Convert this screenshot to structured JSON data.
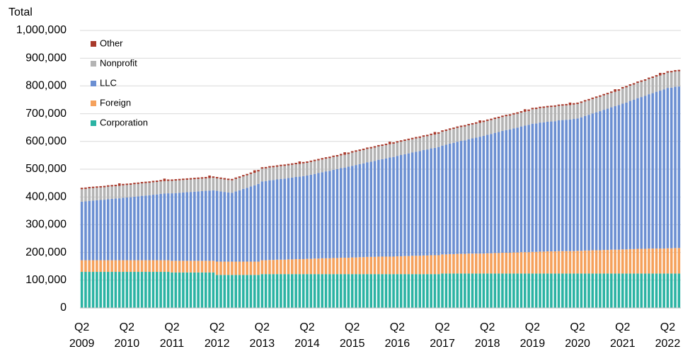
{
  "chart_data": {
    "type": "stacked_bar",
    "y_label": "Total",
    "categories": [
      [
        "Q2",
        "2009"
      ],
      null,
      null,
      null,
      null,
      null,
      null,
      null,
      null,
      null,
      null,
      null,
      [
        "Q2",
        "2010"
      ],
      null,
      null,
      null,
      null,
      null,
      null,
      null,
      null,
      null,
      null,
      null,
      [
        "Q2",
        "2011"
      ],
      null,
      null,
      null,
      null,
      null,
      null,
      null,
      null,
      null,
      null,
      null,
      [
        "Q2",
        "2012"
      ],
      null,
      null,
      null,
      null,
      null,
      null,
      null,
      null,
      null,
      null,
      null,
      [
        "Q2",
        "2013"
      ],
      null,
      null,
      null,
      null,
      null,
      null,
      null,
      null,
      null,
      null,
      null,
      [
        "Q2",
        "2014"
      ],
      null,
      null,
      null,
      null,
      null,
      null,
      null,
      null,
      null,
      null,
      null,
      [
        "Q2",
        "2015"
      ],
      null,
      null,
      null,
      null,
      null,
      null,
      null,
      null,
      null,
      null,
      null,
      [
        "Q2",
        "2016"
      ],
      null,
      null,
      null,
      null,
      null,
      null,
      null,
      null,
      null,
      null,
      null,
      [
        "Q2",
        "2017"
      ],
      null,
      null,
      null,
      null,
      null,
      null,
      null,
      null,
      null,
      null,
      null,
      [
        "Q2",
        "2018"
      ],
      null,
      null,
      null,
      null,
      null,
      null,
      null,
      null,
      null,
      null,
      null,
      [
        "Q2",
        "2019"
      ],
      null,
      null,
      null,
      null,
      null,
      null,
      null,
      null,
      null,
      null,
      null,
      [
        "Q2",
        "2020"
      ],
      null,
      null,
      null,
      null,
      null,
      null,
      null,
      null,
      null,
      null,
      null,
      [
        "Q2",
        "2021"
      ],
      null,
      null,
      null,
      null,
      null,
      null,
      null,
      null,
      null,
      null,
      null,
      [
        "Q2",
        "2022"
      ],
      null,
      null,
      null
    ],
    "series": [
      {
        "name": "Corporation",
        "color": "#2bb3a3",
        "values": [
          130000,
          130000,
          130000,
          130000,
          130000,
          130000,
          130000,
          130000,
          130000,
          130000,
          130000,
          130000,
          130000,
          130000,
          130000,
          130000,
          130000,
          130000,
          130000,
          130000,
          130000,
          130000,
          130000,
          130000,
          128000,
          128000,
          128000,
          128000,
          128000,
          128000,
          128000,
          128000,
          128000,
          128000,
          128000,
          128000,
          119000,
          119000,
          119000,
          119000,
          119000,
          119000,
          119000,
          119000,
          119000,
          119000,
          119000,
          119000,
          122000,
          122000,
          122000,
          122000,
          122000,
          122000,
          122000,
          122000,
          122000,
          122000,
          122000,
          122000,
          122000,
          122000,
          122000,
          122000,
          122000,
          122000,
          122000,
          122000,
          122000,
          122000,
          122000,
          122000,
          122000,
          122000,
          122000,
          122000,
          122000,
          122000,
          122000,
          122000,
          122000,
          122000,
          122000,
          122000,
          122000,
          122000,
          122000,
          122000,
          122000,
          122000,
          122000,
          122000,
          122000,
          122000,
          122000,
          122000,
          124000,
          124000,
          124000,
          124000,
          124000,
          124000,
          124000,
          124000,
          124000,
          124000,
          124000,
          124000,
          124000,
          124000,
          124000,
          124000,
          124000,
          124000,
          124000,
          124000,
          124000,
          124000,
          124000,
          124000,
          124000,
          124000,
          124000,
          124000,
          124000,
          124000,
          124000,
          124000,
          124000,
          124000,
          124000,
          124000,
          124000,
          124000,
          124000,
          124000,
          124000,
          124000,
          124000,
          124000,
          124000,
          124000,
          124000,
          124000,
          124000,
          124000,
          124000,
          124000,
          124000,
          124000,
          124000,
          124000,
          124000,
          124000,
          124000,
          124000,
          124000,
          124000,
          124000,
          124000
        ]
      },
      {
        "name": "Foreign",
        "color": "#f5a15c",
        "values": [
          42000,
          42000,
          42000,
          42000,
          42000,
          42000,
          42000,
          42000,
          42000,
          42000,
          42000,
          42000,
          42000,
          42000,
          42000,
          42000,
          42000,
          42000,
          42000,
          42000,
          42000,
          42000,
          42000,
          42000,
          42000,
          42000,
          42000,
          42000,
          42000,
          42000,
          42000,
          42000,
          42000,
          42000,
          42000,
          42000,
          48000,
          48000,
          48000,
          48000,
          48000,
          48000,
          48000,
          48000,
          48000,
          48000,
          48000,
          48000,
          50000,
          50000,
          51000,
          51000,
          52000,
          52000,
          52000,
          53000,
          53000,
          54000,
          54000,
          54000,
          55000,
          55000,
          56000,
          56000,
          57000,
          57000,
          57000,
          58000,
          58000,
          59000,
          59000,
          59000,
          60000,
          60000,
          61000,
          61000,
          62000,
          62000,
          62000,
          63000,
          63000,
          63000,
          63000,
          63000,
          64000,
          64000,
          65000,
          65000,
          66000,
          66000,
          66000,
          67000,
          67000,
          68000,
          68000,
          68000,
          69000,
          69000,
          70000,
          70000,
          71000,
          71000,
          71000,
          72000,
          72000,
          72000,
          72000,
          72000,
          73000,
          73000,
          74000,
          74000,
          75000,
          75000,
          75000,
          76000,
          76000,
          77000,
          77000,
          77000,
          78000,
          78000,
          79000,
          79000,
          80000,
          80000,
          80000,
          81000,
          81000,
          81000,
          81000,
          81000,
          82000,
          82000,
          83000,
          83000,
          84000,
          84000,
          84000,
          85000,
          85000,
          86000,
          86000,
          86000,
          87000,
          87000,
          88000,
          88000,
          89000,
          89000,
          89000,
          90000,
          90000,
          90000,
          90000,
          90000,
          91000,
          91000,
          92000,
          92000
        ]
      },
      {
        "name": "LLC",
        "color": "#6b8fd2",
        "values": [
          211000,
          212000,
          214000,
          215000,
          216000,
          217000,
          218000,
          220000,
          221000,
          222000,
          223000,
          225000,
          226000,
          227000,
          229000,
          230000,
          232000,
          233000,
          234000,
          236000,
          237000,
          239000,
          240000,
          241000,
          243000,
          244000,
          245000,
          246000,
          247000,
          248000,
          249000,
          250000,
          251000,
          252000,
          253000,
          254000,
          255000,
          253000,
          251000,
          249000,
          248000,
          253000,
          257000,
          262000,
          266000,
          271000,
          275000,
          280000,
          284000,
          285000,
          287000,
          288000,
          289000,
          291000,
          292000,
          293000,
          295000,
          296000,
          297000,
          299000,
          300000,
          303000,
          305000,
          308000,
          310000,
          313000,
          315000,
          318000,
          320000,
          323000,
          325000,
          328000,
          330000,
          333000,
          335000,
          338000,
          341000,
          343000,
          346000,
          349000,
          351000,
          354000,
          357000,
          359000,
          362000,
          365000,
          367000,
          370000,
          372000,
          375000,
          377000,
          380000,
          382000,
          385000,
          387000,
          390000,
          392000,
          395000,
          398000,
          401000,
          404000,
          407000,
          409000,
          412000,
          415000,
          418000,
          421000,
          424000,
          427000,
          430000,
          433000,
          436000,
          439000,
          442000,
          444000,
          447000,
          450000,
          453000,
          456000,
          459000,
          462000,
          463000,
          465000,
          466000,
          467000,
          468000,
          469000,
          471000,
          472000,
          473000,
          474000,
          476000,
          477000,
          481000,
          485000,
          489000,
          493000,
          497000,
          501000,
          505000,
          509000,
          513000,
          517000,
          521000,
          525000,
          529000,
          534000,
          538000,
          543000,
          547000,
          551000,
          556000,
          560000,
          565000,
          569000,
          573000,
          578000,
          579000,
          581000,
          582000
        ]
      },
      {
        "name": "Nonprofit",
        "color": "#b4b4b4",
        "values": [
          45000,
          45000,
          45000,
          45000,
          45000,
          45000,
          45000,
          45000,
          45000,
          45000,
          45000,
          45000,
          45000,
          45000,
          45000,
          45000,
          45000,
          45000,
          45000,
          45000,
          45000,
          45000,
          45000,
          45000,
          45000,
          45000,
          45000,
          45000,
          45000,
          45000,
          45000,
          45000,
          45000,
          45000,
          45000,
          45000,
          45000,
          45000,
          45000,
          45000,
          45000,
          45000,
          45000,
          45000,
          45000,
          45000,
          45000,
          45000,
          46000,
          46000,
          46000,
          46000,
          46000,
          46000,
          46000,
          46000,
          46000,
          46000,
          46000,
          46000,
          46000,
          46000,
          46000,
          46000,
          46000,
          46000,
          46000,
          46000,
          46000,
          46000,
          46000,
          46000,
          48000,
          48000,
          48000,
          48000,
          48000,
          48000,
          48000,
          48000,
          48000,
          48000,
          48000,
          48000,
          48000,
          48000,
          48000,
          48000,
          48000,
          48000,
          48000,
          48000,
          48000,
          48000,
          48000,
          48000,
          50000,
          50000,
          50000,
          50000,
          50000,
          50000,
          50000,
          50000,
          50000,
          50000,
          50000,
          50000,
          50000,
          50000,
          50000,
          50000,
          50000,
          50000,
          50000,
          50000,
          50000,
          50000,
          50000,
          50000,
          52000,
          52000,
          52000,
          52000,
          52000,
          52000,
          52000,
          52000,
          52000,
          52000,
          52000,
          52000,
          52000,
          52000,
          52000,
          52000,
          52000,
          52000,
          52000,
          52000,
          52000,
          52000,
          52000,
          52000,
          55000,
          55000,
          55000,
          55000,
          55000,
          55000,
          55000,
          55000,
          55000,
          55000,
          55000,
          55000,
          55000,
          55000,
          55000,
          55000
        ]
      },
      {
        "name": "Other",
        "color": "#a8392b",
        "values": [
          5000,
          5000,
          5000,
          5000,
          5000,
          5000,
          5000,
          5000,
          5000,
          5000,
          9000,
          5000,
          5000,
          5000,
          5000,
          5000,
          5000,
          5000,
          5000,
          5000,
          5000,
          5000,
          9000,
          5000,
          5000,
          5000,
          5000,
          5000,
          5000,
          5000,
          5000,
          5000,
          5000,
          5000,
          9000,
          5000,
          5000,
          5000,
          5000,
          5000,
          5000,
          5000,
          5000,
          5000,
          5000,
          5000,
          9000,
          5000,
          5000,
          5000,
          5000,
          5000,
          5000,
          5000,
          5000,
          5000,
          5000,
          5000,
          9000,
          5000,
          5000,
          5000,
          5000,
          5000,
          5000,
          5000,
          5000,
          5000,
          5000,
          5000,
          9000,
          5000,
          5000,
          5000,
          5000,
          5000,
          5000,
          5000,
          5000,
          5000,
          5000,
          5000,
          9000,
          5000,
          5000,
          5000,
          5000,
          5000,
          5000,
          5000,
          5000,
          5000,
          5000,
          5000,
          9000,
          5000,
          5000,
          5000,
          5000,
          5000,
          5000,
          5000,
          5000,
          5000,
          5000,
          5000,
          9000,
          5000,
          5000,
          5000,
          5000,
          5000,
          5000,
          5000,
          5000,
          5000,
          5000,
          5000,
          9000,
          5000,
          5000,
          5000,
          5000,
          5000,
          5000,
          5000,
          5000,
          5000,
          5000,
          5000,
          9000,
          5000,
          5000,
          5000,
          5000,
          5000,
          5000,
          5000,
          5000,
          5000,
          5000,
          5000,
          9000,
          5000,
          5000,
          5000,
          5000,
          5000,
          5000,
          5000,
          5000,
          5000,
          5000,
          5000,
          9000,
          5000,
          5000,
          5000,
          5000,
          5000
        ]
      }
    ],
    "ylim": [
      0,
      1000000
    ],
    "yticks": [
      0,
      {
        "value": 100000,
        "label": "100,000"
      },
      {
        "value": 200000,
        "label": "200,000"
      },
      {
        "value": 300000,
        "label": "300,000"
      },
      {
        "value": 400000,
        "label": "400,000"
      },
      {
        "value": 500000,
        "label": "500,000"
      },
      {
        "value": 600000,
        "label": "600,000"
      },
      {
        "value": 700000,
        "label": "700,000"
      },
      {
        "value": 800000,
        "label": "800,000"
      },
      {
        "value": 900000,
        "label": "900,000"
      },
      {
        "value": 1000000,
        "label": "1,000,000"
      }
    ],
    "grid": true,
    "legend": "upper left"
  }
}
